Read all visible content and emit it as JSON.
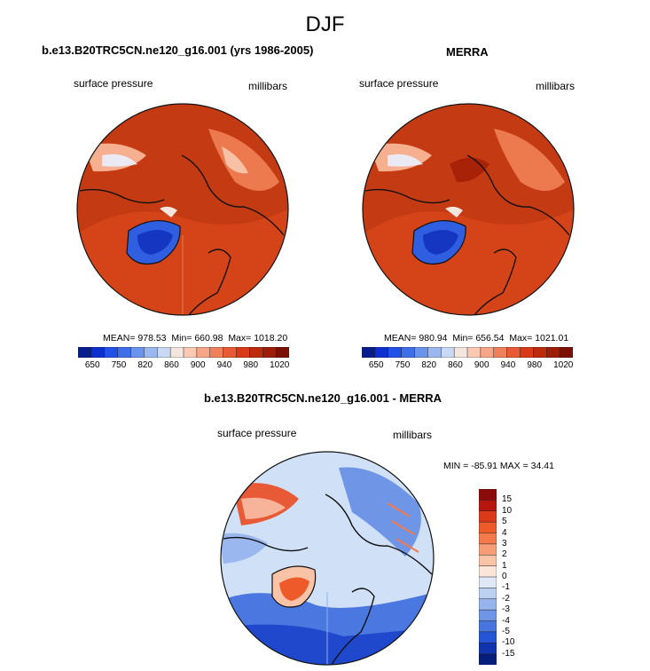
{
  "figure": {
    "title": "DJF"
  },
  "chart_data": [
    {
      "type": "heatmap",
      "title": "b.e13.B20TRC5CN.ne120_g16.001 (yrs 1986-2005)",
      "left_label": "surface pressure",
      "right_label": "millibars",
      "projection": "north polar stereographic",
      "stats": {
        "mean_label": "MEAN=",
        "mean": "978.53",
        "min_label": "Min=",
        "min": "660.98",
        "max_label": "Max=",
        "max": "1018.20"
      },
      "colorbar": {
        "orientation": "horizontal",
        "tick_labels": [
          "650",
          "750",
          "820",
          "860",
          "900",
          "940",
          "980",
          "1020"
        ],
        "colors": [
          "#081d8a",
          "#0d2fd0",
          "#2151e6",
          "#3f6fe8",
          "#6a93ec",
          "#9ab7f0",
          "#c8d9f5",
          "#f3e6df",
          "#f9c9b4",
          "#f6a586",
          "#f07f5c",
          "#e85a35",
          "#d93a15",
          "#bd2a0a",
          "#9e1d06",
          "#7a1004"
        ]
      }
    },
    {
      "type": "heatmap",
      "title": "MERRA",
      "left_label": "surface pressure",
      "right_label": "millibars",
      "projection": "north polar stereographic",
      "stats": {
        "mean_label": "MEAN=",
        "mean": "980.94",
        "min_label": "Min=",
        "min": "656.54",
        "max_label": "Max=",
        "max": "1021.01"
      },
      "colorbar": {
        "orientation": "horizontal",
        "tick_labels": [
          "650",
          "750",
          "820",
          "860",
          "900",
          "940",
          "980",
          "1020"
        ],
        "colors": [
          "#081d8a",
          "#0d2fd0",
          "#2151e6",
          "#3f6fe8",
          "#6a93ec",
          "#9ab7f0",
          "#c8d9f5",
          "#f3e6df",
          "#f9c9b4",
          "#f6a586",
          "#f07f5c",
          "#e85a35",
          "#d93a15",
          "#bd2a0a",
          "#9e1d06",
          "#7a1004"
        ]
      }
    },
    {
      "type": "heatmap",
      "title": "b.e13.B20TRC5CN.ne120_g16.001 - MERRA",
      "left_label": "surface pressure",
      "right_label": "millibars",
      "projection": "north polar stereographic",
      "stats": {
        "min_label": "MIN =",
        "min": "-85.91",
        "max_label": "MAX =",
        "max": "34.41"
      },
      "colorbar": {
        "orientation": "vertical",
        "tick_labels": [
          "15",
          "10",
          "5",
          "4",
          "3",
          "2",
          "1",
          "0",
          "-1",
          "-2",
          "-3",
          "-4",
          "-5",
          "-10",
          "-15"
        ],
        "colors": [
          "#8c0a0a",
          "#b8150f",
          "#db3a1a",
          "#ef5a2a",
          "#f5794a",
          "#f79d76",
          "#f9c3a8",
          "#fbe5da",
          "#dfe8f6",
          "#bcd1f2",
          "#96b5ec",
          "#6f95e6",
          "#4874e0",
          "#2455d6",
          "#1034b0",
          "#061d7a"
        ]
      }
    }
  ]
}
